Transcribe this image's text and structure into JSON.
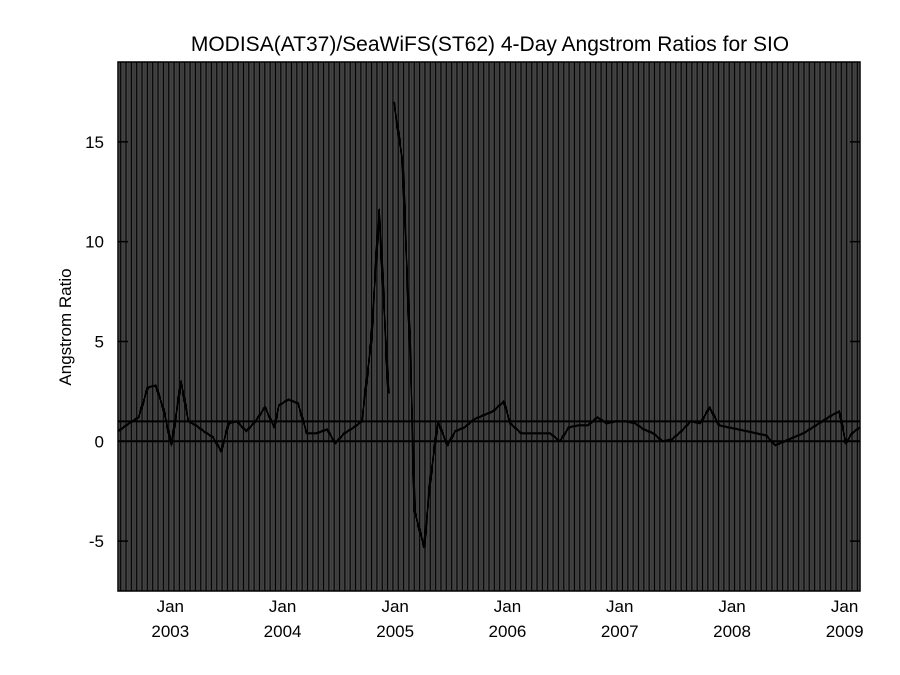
{
  "chart_data": {
    "type": "line",
    "title": "MODISA(AT37)/SeaWiFS(ST62) 4-Day Angstrom Ratios for SIO",
    "xlabel": "",
    "ylabel": "Angstrom Ratio",
    "xlim": [
      "2002-07-15",
      "2009-02-20"
    ],
    "ylim": [
      -7.5,
      19
    ],
    "yticks": [
      -5,
      0,
      5,
      10,
      15
    ],
    "ytick_labels": [
      "-5",
      "0",
      "5",
      "10",
      "15"
    ],
    "xticks": [
      {
        "date": "2003-01-01",
        "month": "Jan",
        "year": "2003"
      },
      {
        "date": "2004-01-01",
        "month": "Jan",
        "year": "2004"
      },
      {
        "date": "2005-01-01",
        "month": "Jan",
        "year": "2005"
      },
      {
        "date": "2006-01-01",
        "month": "Jan",
        "year": "2006"
      },
      {
        "date": "2007-01-01",
        "month": "Jan",
        "year": "2007"
      },
      {
        "date": "2008-01-01",
        "month": "Jan",
        "year": "2008"
      },
      {
        "date": "2009-01-01",
        "month": "Jan",
        "year": "2009"
      }
    ],
    "grid": "vertical lines every 4-day period",
    "reference_lines": [
      0,
      1
    ],
    "series": [
      {
        "segments": [
          [
            {
              "x": "2002-07-15",
              "y": 0.5
            },
            {
              "x": "2002-08-20",
              "y": 0.9
            },
            {
              "x": "2002-09-20",
              "y": 1.2
            },
            {
              "x": "2002-10-20",
              "y": 2.7
            },
            {
              "x": "2002-11-15",
              "y": 2.8
            },
            {
              "x": "2002-12-10",
              "y": 1.6
            },
            {
              "x": "2003-01-05",
              "y": -0.2
            },
            {
              "x": "2003-02-05",
              "y": 3.0
            },
            {
              "x": "2003-03-01",
              "y": 1.0
            },
            {
              "x": "2003-03-25",
              "y": 0.8
            },
            {
              "x": "2003-04-20",
              "y": 0.5
            },
            {
              "x": "2003-05-20",
              "y": 0.2
            },
            {
              "x": "2003-06-15",
              "y": -0.5
            },
            {
              "x": "2003-07-10",
              "y": 0.9
            },
            {
              "x": "2003-08-05",
              "y": 1.0
            },
            {
              "x": "2003-09-05",
              "y": 0.5
            },
            {
              "x": "2003-10-05",
              "y": 1.0
            },
            {
              "x": "2003-11-05",
              "y": 1.7
            },
            {
              "x": "2003-12-05",
              "y": 0.7
            },
            {
              "x": "2003-12-20",
              "y": 1.8
            },
            {
              "x": "2004-01-20",
              "y": 2.1
            },
            {
              "x": "2004-02-20",
              "y": 1.9
            },
            {
              "x": "2004-03-20",
              "y": 0.4
            },
            {
              "x": "2004-04-20",
              "y": 0.4
            },
            {
              "x": "2004-05-25",
              "y": 0.6
            },
            {
              "x": "2004-06-20",
              "y": -0.1
            },
            {
              "x": "2004-07-20",
              "y": 0.4
            },
            {
              "x": "2004-08-20",
              "y": 0.7
            },
            {
              "x": "2004-09-15",
              "y": 1.0
            },
            {
              "x": "2004-10-15",
              "y": 5.0
            },
            {
              "x": "2004-11-10",
              "y": 11.6
            },
            {
              "x": "2004-12-10",
              "y": 2.4
            }
          ],
          [
            {
              "x": "2004-12-28",
              "y": 17.0
            },
            {
              "x": "2005-01-25",
              "y": 14.0
            },
            {
              "x": "2005-02-20",
              "y": 4.0
            },
            {
              "x": "2005-03-05",
              "y": -3.5
            },
            {
              "x": "2005-04-05",
              "y": -5.3
            },
            {
              "x": "2005-04-25",
              "y": -2.0
            },
            {
              "x": "2005-05-20",
              "y": 1.0
            },
            {
              "x": "2005-06-20",
              "y": -0.2
            },
            {
              "x": "2005-07-15",
              "y": 0.5
            },
            {
              "x": "2005-08-15",
              "y": 0.7
            },
            {
              "x": "2005-09-15",
              "y": 1.1
            },
            {
              "x": "2005-10-15",
              "y": 1.3
            },
            {
              "x": "2005-11-15",
              "y": 1.5
            },
            {
              "x": "2005-12-20",
              "y": 2.0
            },
            {
              "x": "2006-01-10",
              "y": 0.9
            },
            {
              "x": "2006-02-15",
              "y": 0.4
            },
            {
              "x": "2006-03-20",
              "y": 0.4
            },
            {
              "x": "2006-04-20",
              "y": 0.4
            },
            {
              "x": "2006-05-20",
              "y": 0.4
            },
            {
              "x": "2006-06-20",
              "y": 0.0
            },
            {
              "x": "2006-07-20",
              "y": 0.7
            },
            {
              "x": "2006-08-20",
              "y": 0.8
            },
            {
              "x": "2006-09-20",
              "y": 0.8
            },
            {
              "x": "2006-10-20",
              "y": 1.2
            },
            {
              "x": "2006-11-20",
              "y": 0.9
            },
            {
              "x": "2006-12-20",
              "y": 1.0
            },
            {
              "x": "2007-01-20",
              "y": 1.0
            },
            {
              "x": "2007-02-20",
              "y": 0.9
            },
            {
              "x": "2007-03-20",
              "y": 0.6
            },
            {
              "x": "2007-04-20",
              "y": 0.4
            },
            {
              "x": "2007-05-20",
              "y": 0.0
            },
            {
              "x": "2007-06-20",
              "y": 0.1
            },
            {
              "x": "2007-07-20",
              "y": 0.5
            },
            {
              "x": "2007-08-20",
              "y": 1.0
            },
            {
              "x": "2007-09-20",
              "y": 0.9
            },
            {
              "x": "2007-10-20",
              "y": 1.7
            },
            {
              "x": "2007-11-20",
              "y": 0.8
            },
            {
              "x": "2007-12-20",
              "y": 0.7
            },
            {
              "x": "2008-01-20",
              "y": 0.6
            },
            {
              "x": "2008-02-20",
              "y": 0.5
            },
            {
              "x": "2008-03-20",
              "y": 0.4
            },
            {
              "x": "2008-04-20",
              "y": 0.3
            },
            {
              "x": "2008-05-20",
              "y": -0.2
            },
            {
              "x": "2008-06-20",
              "y": 0.0
            },
            {
              "x": "2008-07-20",
              "y": 0.2
            },
            {
              "x": "2008-08-20",
              "y": 0.4
            },
            {
              "x": "2008-09-20",
              "y": 0.7
            },
            {
              "x": "2008-10-20",
              "y": 1.0
            },
            {
              "x": "2008-11-20",
              "y": 1.3
            },
            {
              "x": "2008-12-15",
              "y": 1.5
            },
            {
              "x": "2009-01-05",
              "y": -0.1
            },
            {
              "x": "2009-01-25",
              "y": 0.4
            },
            {
              "x": "2009-02-20",
              "y": 0.7
            }
          ]
        ]
      }
    ]
  }
}
